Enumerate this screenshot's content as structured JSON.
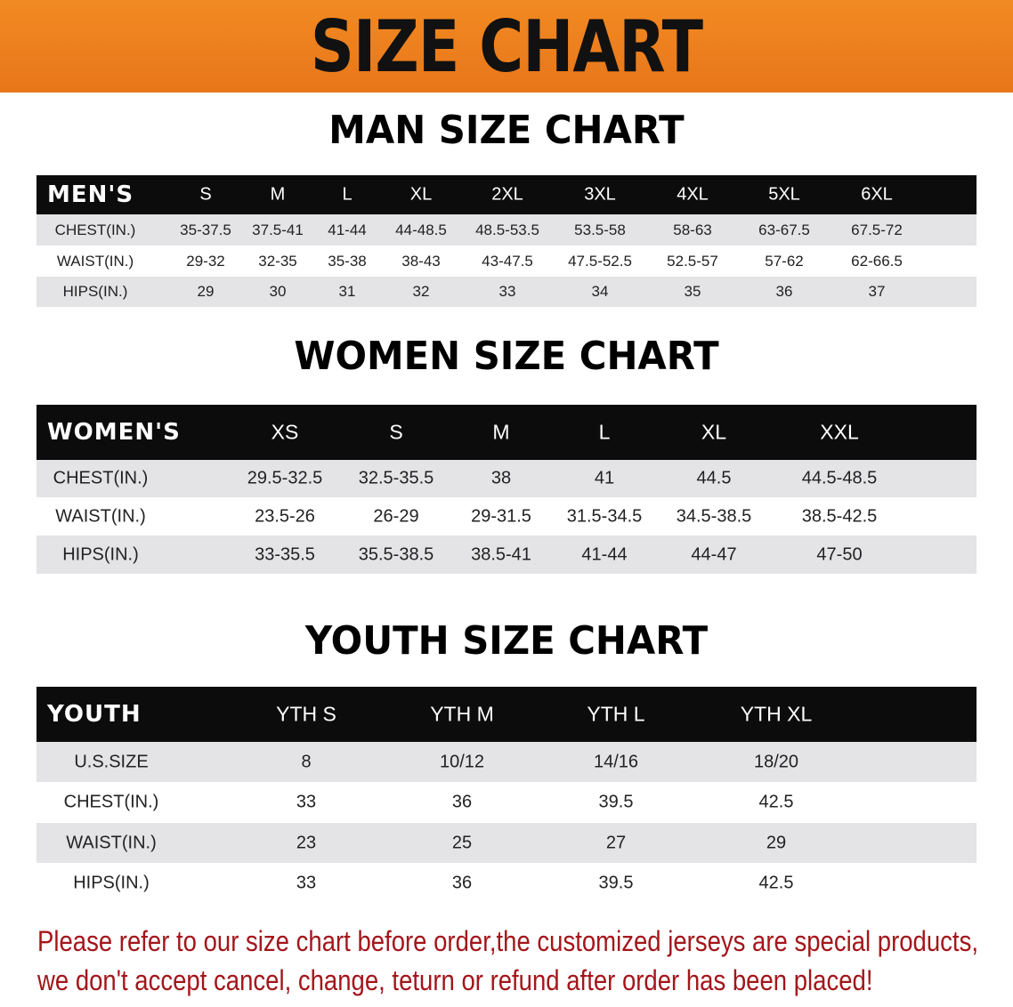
{
  "banner_title": "SIZE CHART",
  "men": {
    "title": "MAN SIZE CHART",
    "header": [
      "MEN'S",
      "S",
      "M",
      "L",
      "XL",
      "2XL",
      "3XL",
      "4XL",
      "5XL",
      "6XL"
    ],
    "rows": [
      [
        "CHEST(IN.)",
        "35-37.5",
        "37.5-41",
        "41-44",
        "44-48.5",
        "48.5-53.5",
        "53.5-58",
        "58-63",
        "63-67.5",
        "67.5-72"
      ],
      [
        "WAIST(IN.)",
        "29-32",
        "32-35",
        "35-38",
        "38-43",
        "43-47.5",
        "47.5-52.5",
        "52.5-57",
        "57-62",
        "62-66.5"
      ],
      [
        "HIPS(IN.)",
        "29",
        "30",
        "31",
        "32",
        "33",
        "34",
        "35",
        "36",
        "37"
      ]
    ]
  },
  "women": {
    "title": "WOMEN SIZE CHART",
    "header": [
      "WOMEN'S",
      "XS",
      "S",
      "M",
      "L",
      "XL",
      "XXL"
    ],
    "rows": [
      [
        "CHEST(IN.)",
        "29.5-32.5",
        "32.5-35.5",
        "38",
        "41",
        "44.5",
        "44.5-48.5"
      ],
      [
        "WAIST(IN.)",
        "23.5-26",
        "26-29",
        "29-31.5",
        "31.5-34.5",
        "34.5-38.5",
        "38.5-42.5"
      ],
      [
        "HIPS(IN.)",
        "33-35.5",
        "35.5-38.5",
        "38.5-41",
        "41-44",
        "44-47",
        "47-50"
      ]
    ]
  },
  "youth": {
    "title": "YOUTH SIZE CHART",
    "header": [
      "YOUTH",
      "YTH S",
      "YTH M",
      "YTH L",
      "YTH XL"
    ],
    "rows": [
      [
        "U.S.SIZE",
        "8",
        "10/12",
        "14/16",
        "18/20"
      ],
      [
        "CHEST(IN.)",
        "33",
        "36",
        "39.5",
        "42.5"
      ],
      [
        "WAIST(IN.)",
        "23",
        "25",
        "27",
        "29"
      ],
      [
        "HIPS(IN.)",
        "33",
        "36",
        "39.5",
        "42.5"
      ]
    ]
  },
  "note": {
    "line1": "Please refer to our size chart before order,the customized jerseys are special products,",
    "line2": "we don't accept cancel, change, teturn or refund after order has been placed!"
  },
  "colors": {
    "banner": "#ee801f",
    "header_row": "#0c0c0c",
    "stripe": "#e4e4e6",
    "note": "#a3161b"
  }
}
